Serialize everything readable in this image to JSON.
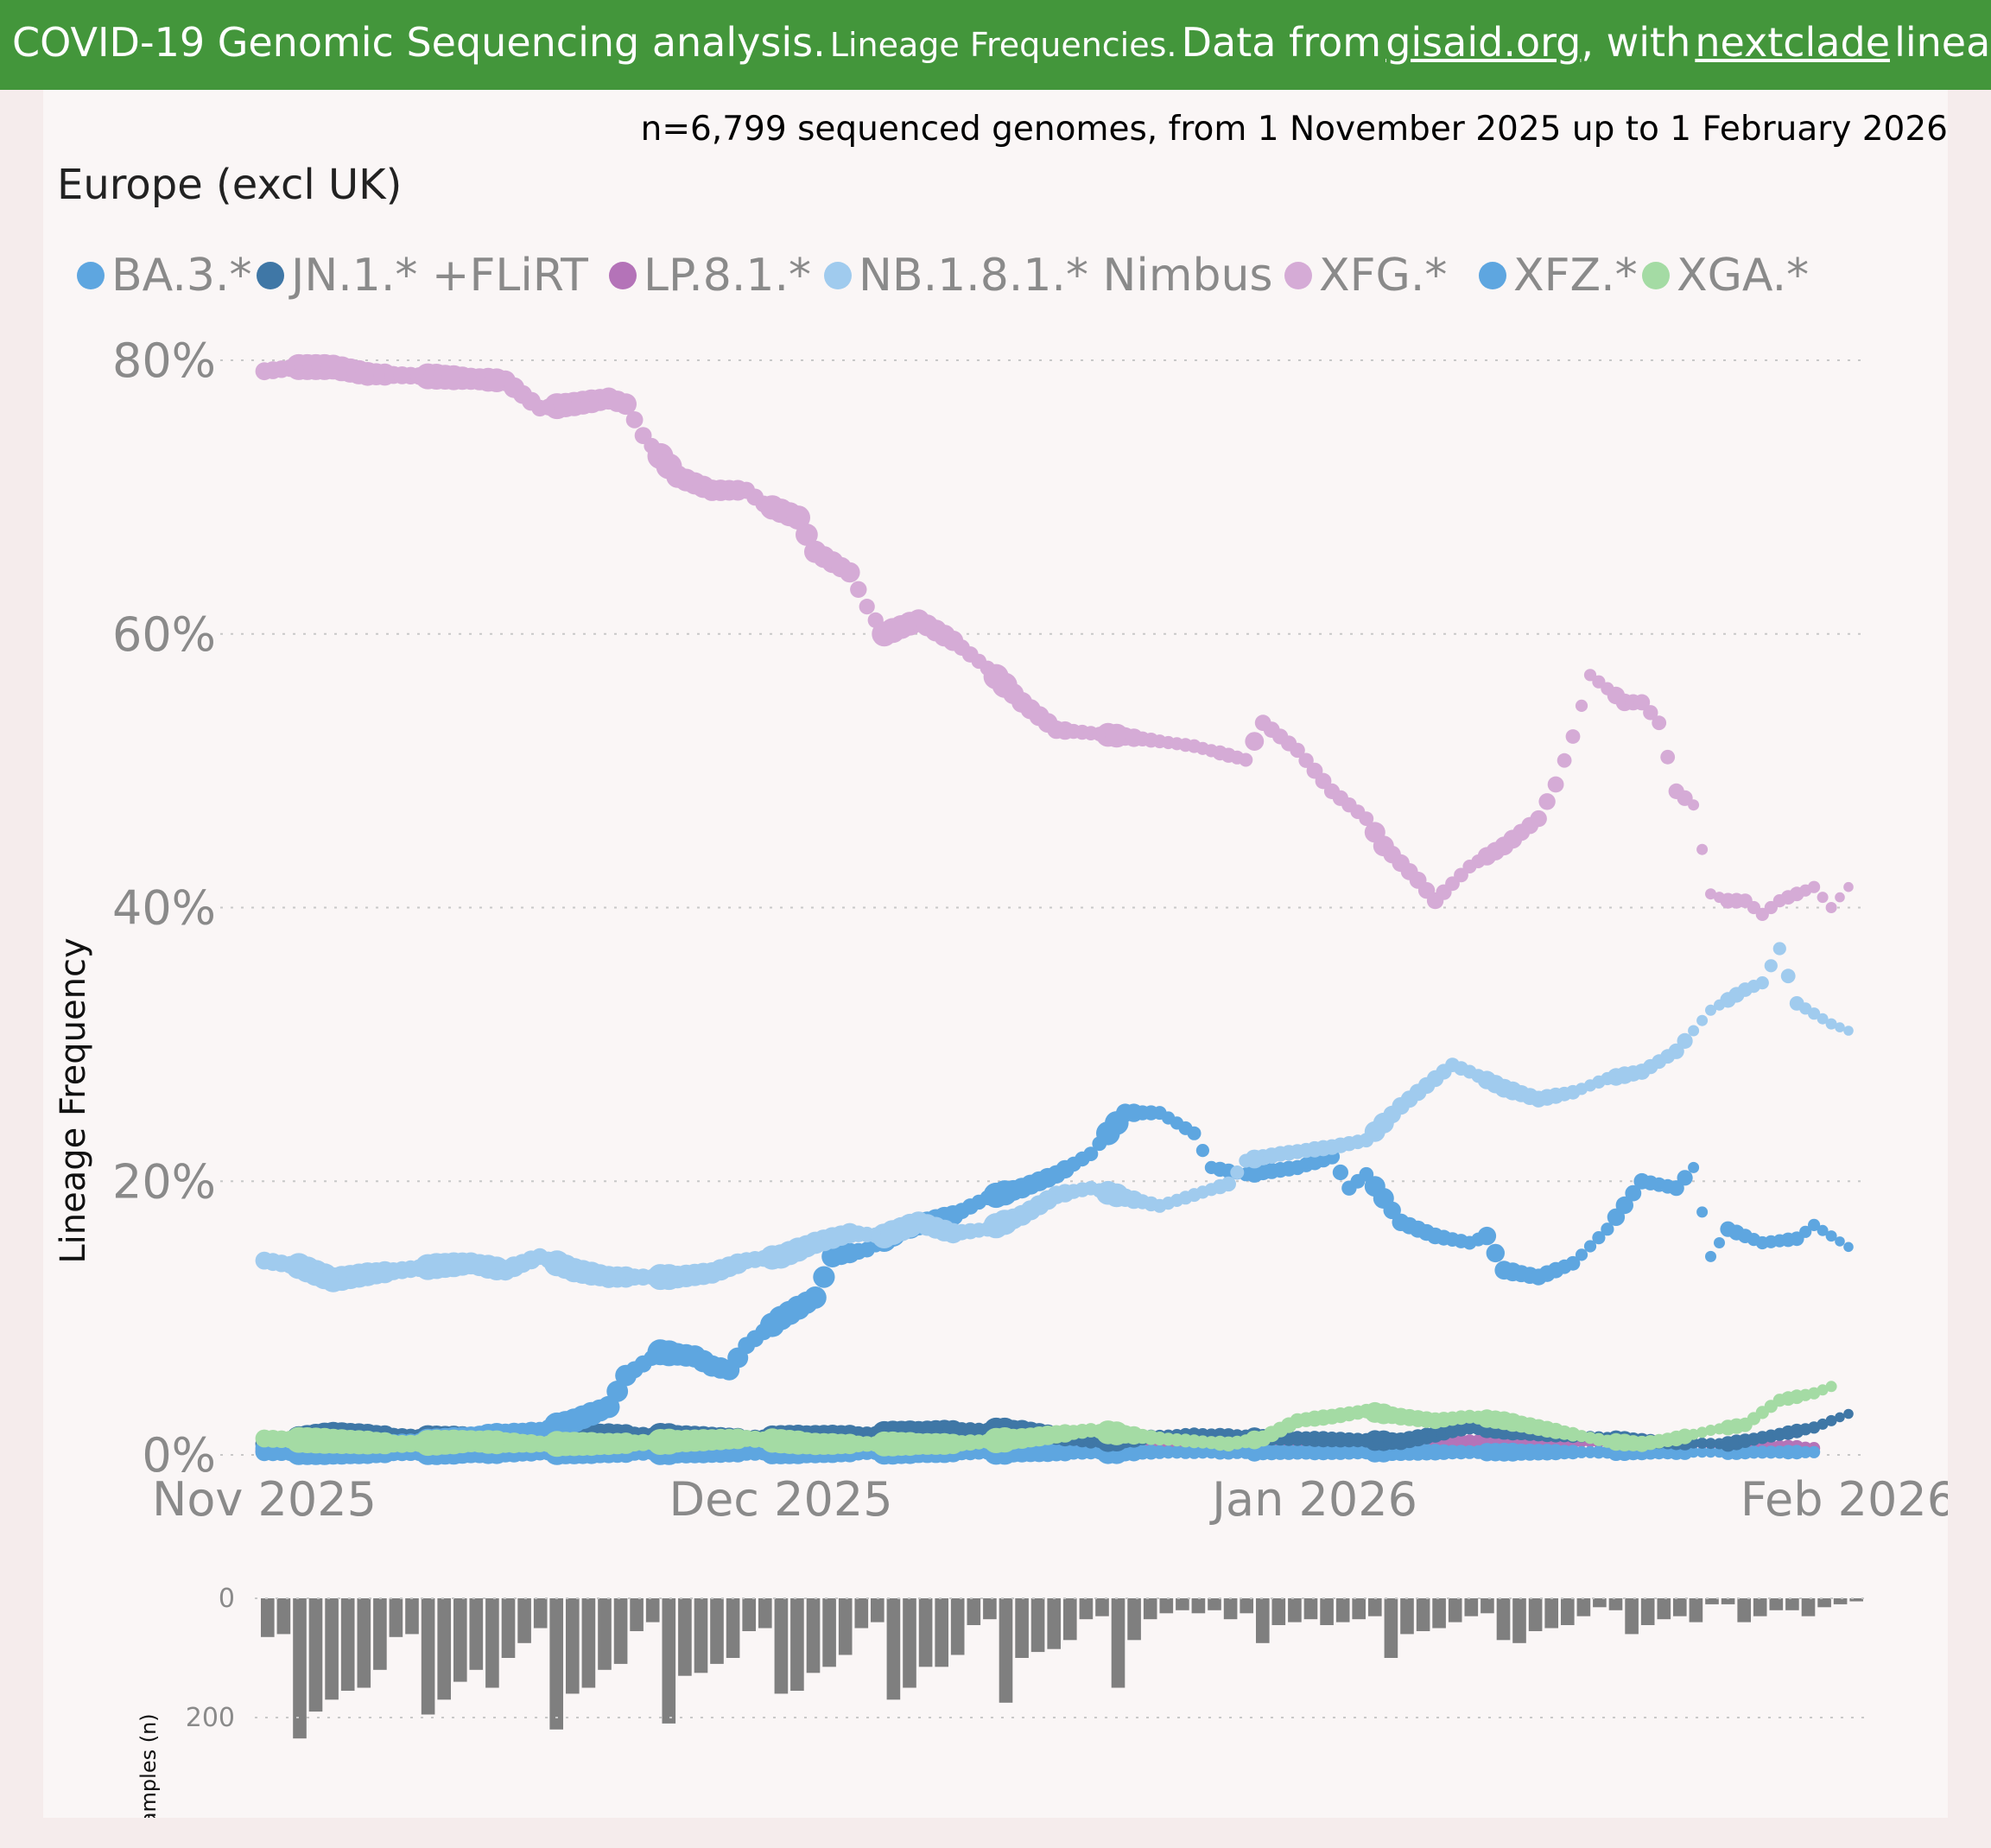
{
  "banner": {
    "title": "COVID-19 Genomic Sequencing analysis.",
    "subtitle": "Lineage Frequencies.",
    "data_from": "Data from",
    "gisaid_link": "gisaid.org",
    "with_text": ", with",
    "nextclade_link": "nextclade",
    "lineages_text": "lineages. Source"
  },
  "colors": {
    "banner": "#43963b",
    "BA.3.*": "#5ea6e0",
    "JN.1.* +FLiRT": "#3f77a6",
    "LP.8.1.*": "#b473b8",
    "NB.1.8.1.* Nimbus": "#a0cbee",
    "XFG.*": "#d5abd6",
    "XFZ.*": "#5ea6e0",
    "XGA.*": "#a4dba4",
    "samples_bar": "#7f7f7f"
  },
  "chart_data": [
    {
      "type": "scatter",
      "title": "Europe (excl UK)",
      "subtitle": "n=6,799 sequenced genomes, from 1 November 2025 up to 1 February 2026",
      "ylabel": "Lineage Frequency",
      "ylim": [
        0,
        80
      ],
      "yticks": [
        0,
        20,
        40,
        60,
        80
      ],
      "ytick_labels": [
        "0%",
        "20%",
        "40%",
        "60%",
        "80%"
      ],
      "x_start": "2025-11-01",
      "x_end": "2026-02-01",
      "xlim_days": [
        -0.5,
        92
      ],
      "xticks_days": [
        0,
        30,
        61,
        92
      ],
      "xtick_labels": [
        "Nov 2025",
        "Dec 2025",
        "Jan 2026",
        "Feb 2026"
      ],
      "legend_position": "top-left",
      "grid": "horizontal dotted",
      "series": [
        {
          "name": "BA.3.*",
          "keyframes": [
            [
              0,
              0.2
            ],
            [
              90,
              0.2
            ]
          ]
        },
        {
          "name": "JN.1.* +FLiRT",
          "keyframes": [
            [
              0,
              0.8
            ],
            [
              4,
              1.5
            ],
            [
              10,
              1.2
            ],
            [
              20,
              1.5
            ],
            [
              28,
              1.2
            ],
            [
              35,
              1.5
            ],
            [
              40,
              1.8
            ],
            [
              44,
              1.8
            ],
            [
              48,
              1.0
            ],
            [
              54,
              1.5
            ],
            [
              60,
              1.2
            ],
            [
              66,
              1.0
            ],
            [
              70,
              2.0
            ],
            [
              80,
              1.0
            ],
            [
              85,
              0.8
            ],
            [
              88,
              1.5
            ],
            [
              90,
              2.0
            ],
            [
              92,
              3.0
            ]
          ]
        },
        {
          "name": "LP.8.1.*",
          "keyframes": [
            [
              0,
              0.3
            ],
            [
              20,
              0.5
            ],
            [
              30,
              0.6
            ],
            [
              40,
              0.8
            ],
            [
              50,
              0.8
            ],
            [
              60,
              0.8
            ],
            [
              70,
              1.0
            ],
            [
              80,
              1.0
            ],
            [
              90,
              0.5
            ]
          ]
        },
        {
          "name": "NB.1.8.1.* Nimbus",
          "keyframes": [
            [
              0,
              14.2
            ],
            [
              2,
              13.8
            ],
            [
              4,
              12.8
            ],
            [
              6,
              13.2
            ],
            [
              8,
              13.5
            ],
            [
              10,
              13.8
            ],
            [
              12,
              14
            ],
            [
              14,
              13.5
            ],
            [
              16,
              14.5
            ],
            [
              18,
              13.5
            ],
            [
              20,
              13.0
            ],
            [
              24,
              13.0
            ],
            [
              26,
              13.3
            ],
            [
              28,
              14.2
            ],
            [
              30,
              14.5
            ],
            [
              32,
              15.5
            ],
            [
              34,
              16.2
            ],
            [
              36,
              16.0
            ],
            [
              38,
              17.0
            ],
            [
              40,
              16.2
            ],
            [
              42,
              16.5
            ],
            [
              44,
              17.5
            ],
            [
              46,
              19.0
            ],
            [
              48,
              19.5
            ],
            [
              50,
              18.8
            ],
            [
              52,
              18.2
            ],
            [
              54,
              19.0
            ],
            [
              56,
              19.8
            ],
            [
              57,
              21.5
            ],
            [
              59,
              22.0
            ],
            [
              62,
              22.5
            ],
            [
              64,
              23.0
            ],
            [
              66,
              25.5
            ],
            [
              68,
              27.5
            ],
            [
              69,
              28.5
            ],
            [
              70,
              28.0
            ],
            [
              72,
              26.8
            ],
            [
              74,
              26.0
            ],
            [
              76,
              26.5
            ],
            [
              78,
              27.5
            ],
            [
              80,
              28.0
            ],
            [
              82,
              29.5
            ],
            [
              84,
              32.5
            ],
            [
              86,
              34.0
            ],
            [
              87,
              34.5
            ],
            [
              88,
              37.0
            ],
            [
              89,
              33.0
            ],
            [
              91,
              31.5
            ],
            [
              92,
              31.0
            ]
          ]
        },
        {
          "name": "XFG.*",
          "keyframes": [
            [
              0,
              79.2
            ],
            [
              2,
              79.5
            ],
            [
              4,
              79.5
            ],
            [
              6,
              79.0
            ],
            [
              10,
              78.8
            ],
            [
              14,
              78.5
            ],
            [
              16,
              76.5
            ],
            [
              18,
              76.8
            ],
            [
              20,
              77.2
            ],
            [
              21,
              76.8
            ],
            [
              22,
              74.5
            ],
            [
              24,
              71.5
            ],
            [
              26,
              70.5
            ],
            [
              28,
              70.5
            ],
            [
              29,
              69.5
            ],
            [
              31,
              68.5
            ],
            [
              32,
              66.0
            ],
            [
              34,
              64.5
            ],
            [
              35,
              62.0
            ],
            [
              36,
              60.0
            ],
            [
              38,
              61.0
            ],
            [
              40,
              59.5
            ],
            [
              42,
              57.5
            ],
            [
              44,
              55.0
            ],
            [
              46,
              53.0
            ],
            [
              50,
              52.5
            ],
            [
              54,
              51.8
            ],
            [
              57,
              50.8
            ],
            [
              58,
              53.5
            ],
            [
              60,
              51.5
            ],
            [
              62,
              48.5
            ],
            [
              64,
              46.5
            ],
            [
              65,
              44.5
            ],
            [
              67,
              42.0
            ],
            [
              68,
              40.5
            ],
            [
              70,
              43.0
            ],
            [
              72,
              44.5
            ],
            [
              74,
              46.5
            ],
            [
              75,
              49.0
            ],
            [
              76,
              52.5
            ],
            [
              77,
              57.0
            ],
            [
              79,
              55.0
            ],
            [
              80,
              55.0
            ],
            [
              81,
              53.5
            ],
            [
              82,
              48.5
            ],
            [
              83,
              47.5
            ],
            [
              84,
              41.0
            ],
            [
              85,
              40.5
            ],
            [
              86,
              40.5
            ],
            [
              87,
              39.5
            ],
            [
              88,
              40.5
            ],
            [
              90,
              41.5
            ],
            [
              91,
              40.0
            ],
            [
              92,
              41.5
            ]
          ]
        },
        {
          "name": "XFZ.*",
          "keyframes": [
            [
              0,
              0.5
            ],
            [
              10,
              1.0
            ],
            [
              16,
              1.8
            ],
            [
              18,
              2.5
            ],
            [
              20,
              3.5
            ],
            [
              21,
              5.8
            ],
            [
              23,
              7.5
            ],
            [
              25,
              7.2
            ],
            [
              26,
              6.5
            ],
            [
              27,
              6.2
            ],
            [
              28,
              8.0
            ],
            [
              30,
              10.0
            ],
            [
              32,
              11.5
            ],
            [
              33,
              14.5
            ],
            [
              35,
              15.0
            ],
            [
              37,
              16.5
            ],
            [
              40,
              17.5
            ],
            [
              42,
              18.8
            ],
            [
              44,
              19.5
            ],
            [
              46,
              20.5
            ],
            [
              48,
              22.0
            ],
            [
              50,
              25.0
            ],
            [
              52,
              25.0
            ],
            [
              54,
              23.5
            ],
            [
              55,
              21.0
            ],
            [
              57,
              20.5
            ],
            [
              60,
              21.0
            ],
            [
              62,
              21.8
            ],
            [
              63,
              19.5
            ],
            [
              64,
              20.5
            ],
            [
              66,
              17.0
            ],
            [
              68,
              16.0
            ],
            [
              70,
              15.5
            ],
            [
              71,
              16.0
            ],
            [
              72,
              13.5
            ],
            [
              74,
              13.0
            ],
            [
              76,
              14.0
            ],
            [
              78,
              16.5
            ],
            [
              80,
              20.0
            ],
            [
              82,
              19.5
            ],
            [
              83,
              21.0
            ],
            [
              84,
              14.5
            ],
            [
              85,
              16.5
            ],
            [
              87,
              15.5
            ],
            [
              89,
              15.8
            ],
            [
              90,
              16.8
            ],
            [
              92,
              15.2
            ]
          ]
        },
        {
          "name": "XGA.*",
          "keyframes": [
            [
              0,
              1.2
            ],
            [
              4,
              1.0
            ],
            [
              8,
              0.8
            ],
            [
              12,
              1.0
            ],
            [
              16,
              0.8
            ],
            [
              20,
              0.8
            ],
            [
              24,
              1.0
            ],
            [
              28,
              1.2
            ],
            [
              32,
              0.8
            ],
            [
              36,
              0.8
            ],
            [
              40,
              0.8
            ],
            [
              44,
              1.2
            ],
            [
              48,
              1.8
            ],
            [
              52,
              1.2
            ],
            [
              56,
              0.8
            ],
            [
              58,
              1.2
            ],
            [
              60,
              2.5
            ],
            [
              62,
              2.8
            ],
            [
              64,
              3.2
            ],
            [
              66,
              2.8
            ],
            [
              68,
              2.5
            ],
            [
              70,
              2.8
            ],
            [
              72,
              2.5
            ],
            [
              74,
              2.0
            ],
            [
              76,
              1.5
            ],
            [
              78,
              1.0
            ],
            [
              80,
              0.8
            ],
            [
              82,
              1.2
            ],
            [
              84,
              1.8
            ],
            [
              86,
              2.2
            ],
            [
              88,
              4.0
            ],
            [
              90,
              4.5
            ],
            [
              91,
              5.0
            ]
          ]
        }
      ]
    },
    {
      "type": "bar",
      "ylabel": "samples (n)",
      "ylim": [
        0,
        240
      ],
      "yticks": [
        0,
        200
      ],
      "ytick_labels": [
        "0",
        "200"
      ],
      "values": [
        65,
        60,
        235,
        190,
        170,
        155,
        150,
        120,
        65,
        60,
        195,
        170,
        140,
        120,
        150,
        100,
        75,
        50,
        220,
        160,
        150,
        120,
        110,
        55,
        40,
        210,
        130,
        125,
        110,
        100,
        55,
        50,
        160,
        155,
        125,
        115,
        95,
        50,
        40,
        170,
        150,
        115,
        115,
        95,
        45,
        35,
        175,
        100,
        90,
        85,
        70,
        35,
        30,
        150,
        70,
        35,
        25,
        20,
        25,
        20,
        35,
        25,
        75,
        45,
        40,
        35,
        45,
        40,
        35,
        30,
        100,
        60,
        55,
        50,
        40,
        30,
        25,
        70,
        75,
        55,
        50,
        45,
        30,
        15,
        20,
        60,
        45,
        35,
        30,
        40,
        10,
        10,
        40,
        30,
        20,
        20,
        30,
        15,
        10,
        5
      ],
      "x_days": "0.92 day spacing, 100 bars spanning the x range"
    }
  ]
}
